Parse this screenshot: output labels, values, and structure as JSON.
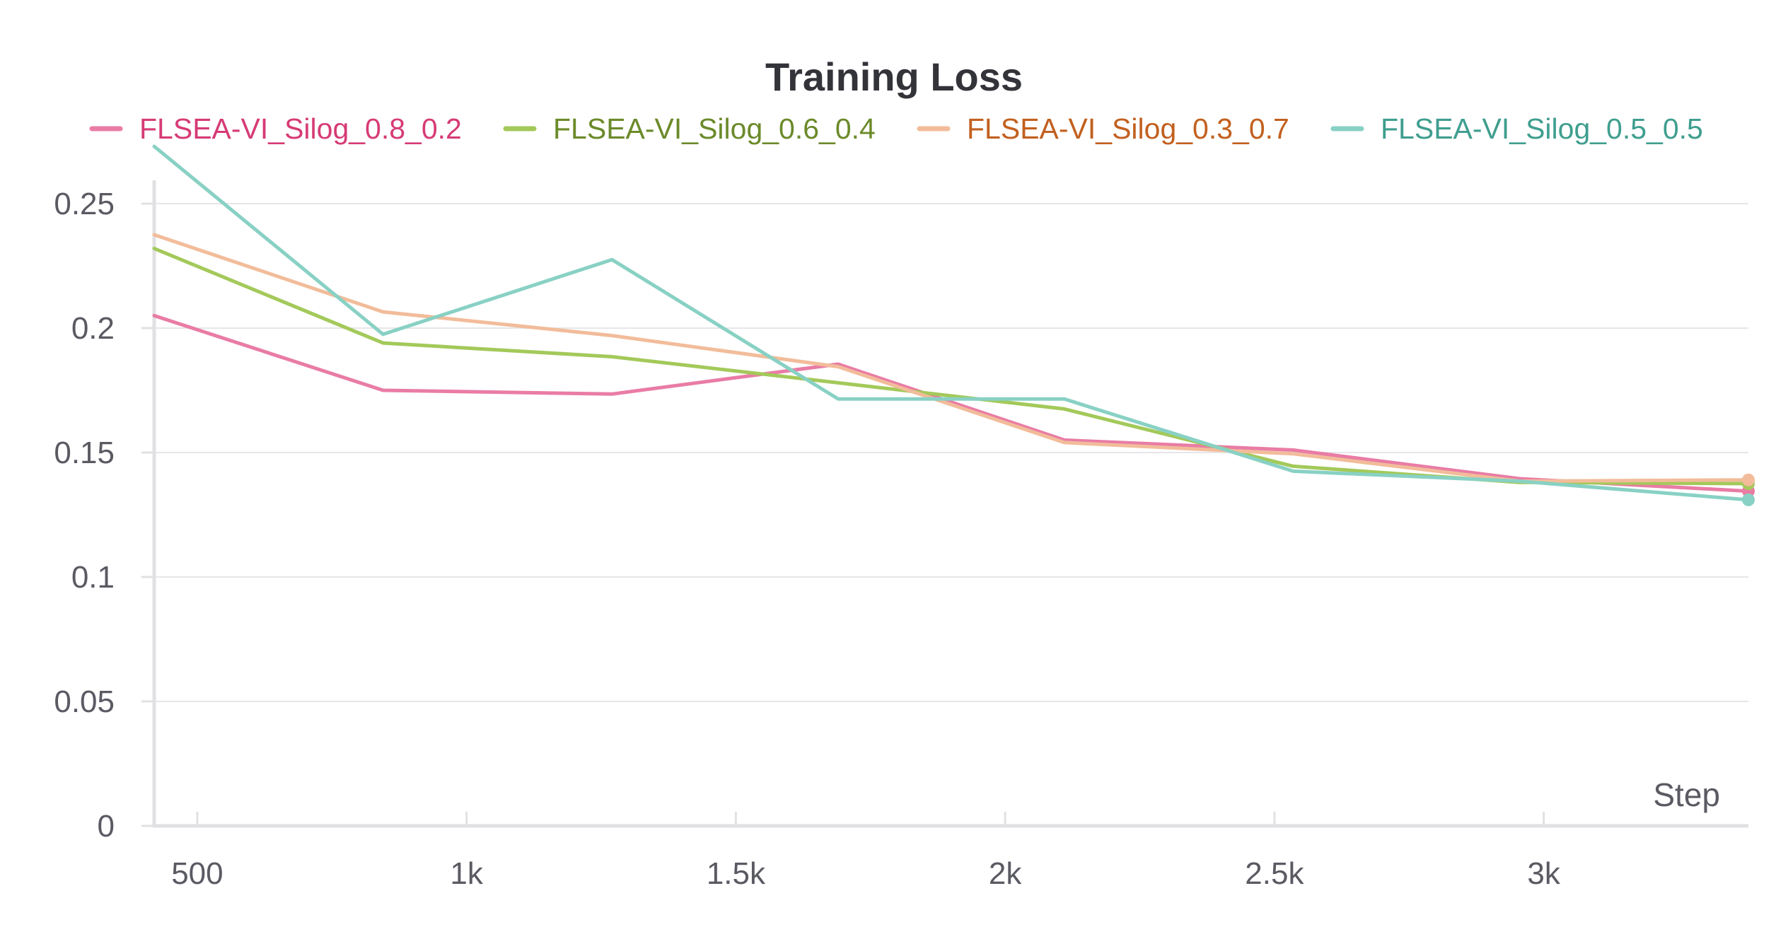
{
  "chart_data": {
    "type": "line",
    "title": "Training Loss",
    "xlabel": "Step",
    "ylabel": "",
    "xlim": [
      420,
      3380
    ],
    "ylim": [
      0,
      0.275
    ],
    "x_ticks": [
      500,
      1000,
      1500,
      2000,
      2500,
      3000
    ],
    "x_tick_labels": [
      "500",
      "1k",
      "1.5k",
      "2k",
      "2.5k",
      "3k"
    ],
    "y_ticks": [
      0,
      0.05,
      0.1,
      0.15,
      0.2,
      0.25
    ],
    "y_tick_labels": [
      "0",
      "0.05",
      "0.1",
      "0.15",
      "0.2",
      "0.25"
    ],
    "grid": true,
    "legend_position": "top",
    "x": [
      420,
      845,
      1270,
      1690,
      2110,
      2535,
      2955,
      3380
    ],
    "series": [
      {
        "name": "FLSEA-VI_Silog_0.8_0.2",
        "color": "#e97ca5",
        "text_color": "#d63b75",
        "values": [
          0.205,
          0.175,
          0.1735,
          0.1855,
          0.155,
          0.151,
          0.1395,
          0.1345
        ]
      },
      {
        "name": "FLSEA-VI_Silog_0.6_0.4",
        "color": "#a3c95a",
        "text_color": "#6b8a2a",
        "values": [
          0.232,
          0.194,
          0.1885,
          0.178,
          0.1675,
          0.1445,
          0.138,
          0.1375
        ]
      },
      {
        "name": "FLSEA-VI_Silog_0.3_0.7",
        "color": "#f2bc9a",
        "text_color": "#c2601f",
        "values": [
          0.2375,
          0.2065,
          0.197,
          0.1845,
          0.154,
          0.1495,
          0.1385,
          0.139
        ]
      },
      {
        "name": "FLSEA-VI_Silog_0.5_0.5",
        "color": "#88d1c4",
        "text_color": "#3f9e8f",
        "values": [
          0.273,
          0.1975,
          0.2275,
          0.1715,
          0.1715,
          0.1425,
          0.1385,
          0.131
        ]
      }
    ]
  }
}
